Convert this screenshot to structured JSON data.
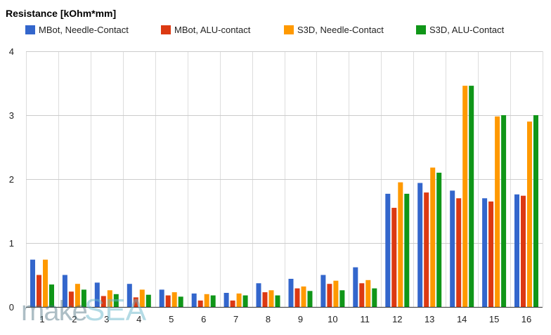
{
  "chart_data": {
    "type": "bar",
    "title": "Resistance [kOhm*mm]",
    "xlabel": "",
    "ylabel": "",
    "ylim": [
      0,
      4
    ],
    "yticks": [
      "0",
      "1",
      "2",
      "3",
      "4"
    ],
    "grid": true,
    "legend_position": "top",
    "categories": [
      "1",
      "2",
      "3",
      "4",
      "5",
      "6",
      "7",
      "8",
      "9",
      "10",
      "11",
      "12",
      "13",
      "14",
      "15",
      "16"
    ],
    "series": [
      {
        "name": "MBot, Needle-Contact",
        "color": "#3366cc",
        "values": [
          0.74,
          0.5,
          0.38,
          0.36,
          0.27,
          0.21,
          0.22,
          0.37,
          0.44,
          0.5,
          0.62,
          1.77,
          1.94,
          1.82,
          1.7,
          1.76
        ]
      },
      {
        "name": "MBot, ALU-contact",
        "color": "#dc3912",
        "values": [
          0.5,
          0.24,
          0.17,
          0.15,
          0.18,
          0.1,
          0.1,
          0.23,
          0.29,
          0.36,
          0.37,
          1.55,
          1.79,
          1.7,
          1.65,
          1.74
        ]
      },
      {
        "name": "S3D, Needle-Contact",
        "color": "#ff9900",
        "values": [
          0.74,
          0.36,
          0.26,
          0.27,
          0.23,
          0.2,
          0.21,
          0.26,
          0.32,
          0.41,
          0.42,
          1.95,
          2.18,
          3.46,
          2.98,
          2.9
        ]
      },
      {
        "name": "S3D, ALU-Contact",
        "color": "#109618",
        "values": [
          0.35,
          0.27,
          0.2,
          0.19,
          0.16,
          0.18,
          0.18,
          0.18,
          0.25,
          0.26,
          0.29,
          1.77,
          2.1,
          3.46,
          3.0,
          3.0
        ]
      }
    ]
  },
  "watermark": "makeSEA"
}
